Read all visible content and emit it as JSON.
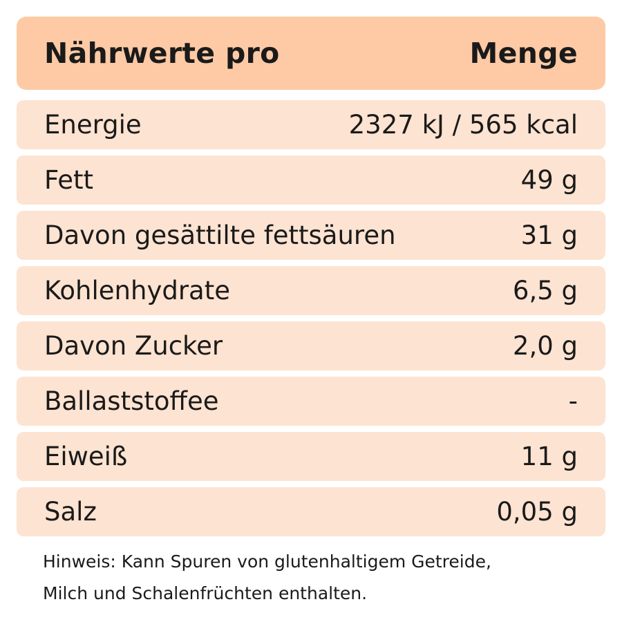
{
  "header": {
    "left": "Nährwerte pro",
    "right": "Menge"
  },
  "rows": [
    {
      "label": "Energie",
      "value": "2327 kJ / 565 kcal"
    },
    {
      "label": "Fett",
      "value": "49 g"
    },
    {
      "label": "Davon gesättilte fettsäuren",
      "value": "31 g"
    },
    {
      "label": "Kohlenhydrate",
      "value": "6,5 g"
    },
    {
      "label": "Davon Zucker",
      "value": "2,0 g"
    },
    {
      "label": "Ballaststoffee",
      "value": "-"
    },
    {
      "label": "Eiweiß",
      "value": "11 g"
    },
    {
      "label": "Salz",
      "value": "0,05 g"
    }
  ],
  "note": {
    "line1": "Hinweis: Kann Spuren von glutenhaltigem Getreide,",
    "line2": "Milch und Schalenfrüchten enthalten."
  },
  "colors": {
    "header_bg": "#fdcaa5",
    "row_bg": "#fde3d1",
    "text": "#1a1a1a"
  }
}
